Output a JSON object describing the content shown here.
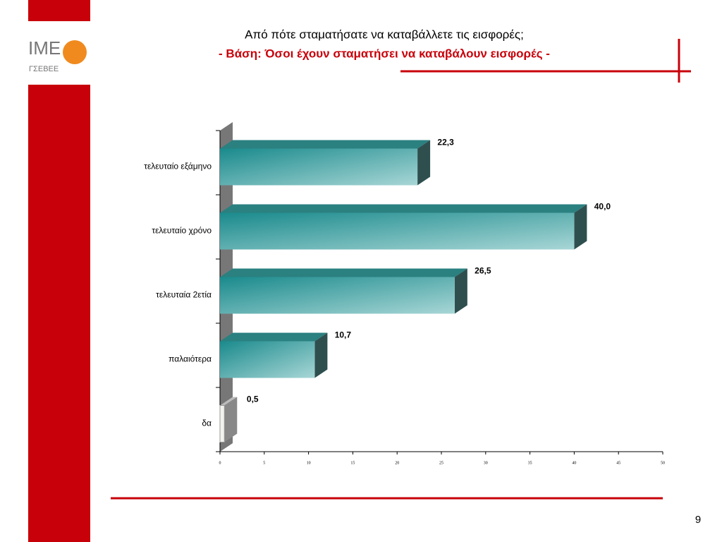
{
  "logo": {
    "name": "IME",
    "org": "ΓΣΕΒΕΕ"
  },
  "page_number": "9",
  "chart_data": {
    "type": "bar",
    "orientation": "horizontal",
    "title": "Από πότε σταματήσατε να καταβάλλετε τις εισφορές;",
    "subtitle": "- Βάση: Όσοι έχουν σταματήσει να καταβάλουν εισφορές -",
    "categories": [
      "τελευταίο εξάμηνο",
      "τελευταίο χρόνο",
      "τελευταία 2ετία",
      "παλαιότερα",
      "δα"
    ],
    "values": [
      22.3,
      40.0,
      26.5,
      10.7,
      0.5
    ],
    "value_labels": [
      "22,3",
      "40,0",
      "26,5",
      "10,7",
      "0,5"
    ],
    "colors": [
      "#5fb8ba",
      "#5fb8ba",
      "#5fb8ba",
      "#5fb8ba",
      "#f2f2ee"
    ],
    "xlim": [
      0,
      50
    ],
    "xticks": [
      0,
      5,
      10,
      15,
      20,
      25,
      30,
      35,
      40,
      45,
      50
    ]
  }
}
